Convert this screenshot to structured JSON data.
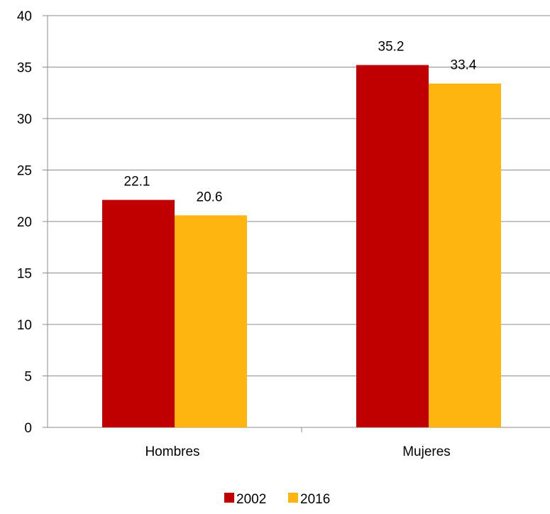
{
  "chart_data": {
    "type": "bar",
    "categories": [
      "Hombres",
      "Mujeres"
    ],
    "series": [
      {
        "name": "2002",
        "values": [
          22.1,
          35.2
        ],
        "color": "#C00000"
      },
      {
        "name": "2016",
        "values": [
          20.6,
          33.4
        ],
        "color": "#FFB50F"
      }
    ],
    "ylim": [
      0,
      40
    ],
    "yticks": [
      0,
      5,
      10,
      15,
      20,
      25,
      30,
      35,
      40
    ],
    "title": "",
    "xlabel": "",
    "ylabel": "",
    "grid": true,
    "legend_position": "bottom-center",
    "data_labels": true
  }
}
